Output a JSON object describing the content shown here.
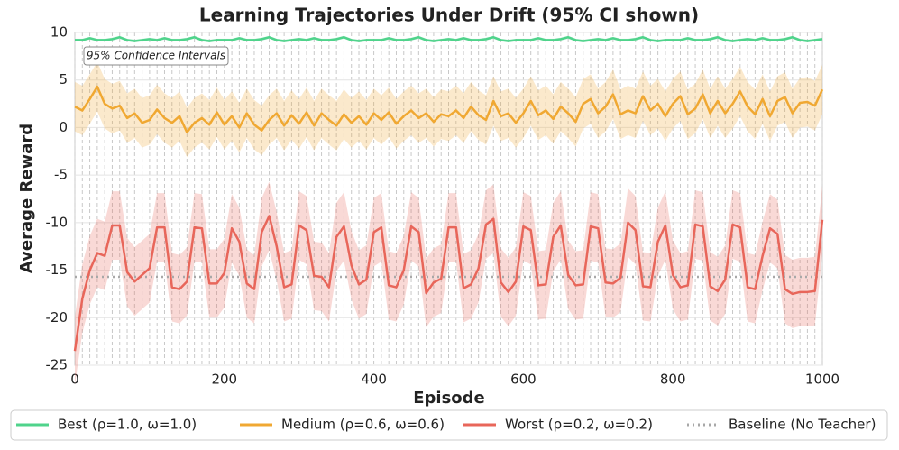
{
  "chart_data": {
    "type": "line",
    "title": "Learning Trajectories Under Drift (95% CI shown)",
    "xlabel": "Episode",
    "ylabel": "Average Reward",
    "annotation": "95% Confidence Intervals",
    "xlim": [
      0,
      1000
    ],
    "ylim": [
      -25,
      10
    ],
    "xticks": [
      0,
      200,
      400,
      600,
      800,
      1000
    ],
    "yticks": [
      10,
      5,
      0,
      -5,
      -10,
      -15,
      -20,
      -25
    ],
    "grid": true,
    "legend": "bottom",
    "x": [
      0,
      10,
      20,
      30,
      40,
      50,
      60,
      70,
      80,
      90,
      100,
      110,
      120,
      130,
      140,
      150,
      160,
      170,
      180,
      190,
      200,
      210,
      220,
      230,
      240,
      250,
      260,
      270,
      280,
      290,
      300,
      310,
      320,
      330,
      340,
      350,
      360,
      370,
      380,
      390,
      400,
      410,
      420,
      430,
      440,
      450,
      460,
      470,
      480,
      490,
      500,
      510,
      520,
      530,
      540,
      550,
      560,
      570,
      580,
      590,
      600,
      610,
      620,
      630,
      640,
      650,
      660,
      670,
      680,
      690,
      700,
      710,
      720,
      730,
      740,
      750,
      760,
      770,
      780,
      790,
      800,
      810,
      820,
      830,
      840,
      850,
      860,
      870,
      880,
      890,
      900,
      910,
      920,
      930,
      940,
      950,
      960,
      970,
      980,
      990,
      1000
    ],
    "series": [
      {
        "name": "Best (ρ=1.0, ω=1.0)",
        "color": "#4fd38b",
        "ci": 0.15,
        "values": [
          9.2,
          9.2,
          9.4,
          9.2,
          9.2,
          9.3,
          9.5,
          9.2,
          9.1,
          9.2,
          9.3,
          9.2,
          9.4,
          9.2,
          9.2,
          9.3,
          9.5,
          9.2,
          9.1,
          9.2,
          9.2,
          9.2,
          9.4,
          9.2,
          9.2,
          9.3,
          9.5,
          9.2,
          9.1,
          9.2,
          9.3,
          9.2,
          9.4,
          9.2,
          9.2,
          9.3,
          9.5,
          9.2,
          9.1,
          9.2,
          9.2,
          9.2,
          9.4,
          9.2,
          9.2,
          9.3,
          9.5,
          9.2,
          9.1,
          9.2,
          9.3,
          9.2,
          9.4,
          9.2,
          9.2,
          9.3,
          9.5,
          9.2,
          9.1,
          9.2,
          9.2,
          9.2,
          9.4,
          9.2,
          9.2,
          9.3,
          9.5,
          9.2,
          9.1,
          9.2,
          9.3,
          9.2,
          9.4,
          9.2,
          9.2,
          9.3,
          9.5,
          9.2,
          9.1,
          9.2,
          9.2,
          9.2,
          9.4,
          9.2,
          9.2,
          9.3,
          9.5,
          9.2,
          9.1,
          9.2,
          9.3,
          9.2,
          9.4,
          9.2,
          9.2,
          9.3,
          9.5,
          9.2,
          9.1,
          9.2,
          9.3
        ]
      },
      {
        "name": "Medium (ρ=0.6, ω=0.6)",
        "color": "#f0a832",
        "ci": 2.6,
        "values": [
          2.2,
          1.8,
          3,
          4.3,
          2.5,
          2,
          2.3,
          1,
          1.5,
          0.5,
          0.8,
          1.9,
          1,
          0.5,
          1.2,
          -0.5,
          0.5,
          1,
          0.3,
          1.6,
          0.3,
          1.2,
          0,
          1.5,
          0.3,
          -0.3,
          0.8,
          1.5,
          0.2,
          1.3,
          0.4,
          1.6,
          0.2,
          1.5,
          0.8,
          0.2,
          1.4,
          0.5,
          1.2,
          0.3,
          1.5,
          0.8,
          1.6,
          0.4,
          1.2,
          1.8,
          1,
          1.5,
          0.6,
          1.4,
          1.2,
          1.8,
          1,
          2.2,
          1.3,
          0.8,
          2.8,
          1.2,
          1.5,
          0.5,
          1.5,
          2.8,
          1.3,
          1.8,
          0.9,
          2.2,
          1.5,
          0.6,
          2.5,
          3,
          1.5,
          2.2,
          3.5,
          1.4,
          1.8,
          1.5,
          3.3,
          1.8,
          2.5,
          1.2,
          2.5,
          3.3,
          1.4,
          2,
          3.5,
          1.5,
          2.8,
          1.5,
          2.5,
          3.8,
          2.2,
          1.4,
          3,
          1.2,
          2.8,
          3.2,
          1.5,
          2.6,
          2.7,
          2.3,
          4
        ]
      },
      {
        "name": "Worst (ρ=0.2, ω=0.2)",
        "color": "#e8665a",
        "ci": 3.6,
        "values": [
          -23.5,
          -18,
          -15,
          -13.2,
          -13.5,
          -10.3,
          -10.3,
          -15.2,
          -16.2,
          -15.5,
          -14.8,
          -10.5,
          -10.5,
          -16.8,
          -17,
          -16.2,
          -10.5,
          -10.6,
          -16.4,
          -16.4,
          -15.3,
          -10.6,
          -12,
          -16.4,
          -17,
          -11,
          -9.3,
          -12.5,
          -16.8,
          -16.5,
          -10.3,
          -10.8,
          -15.6,
          -15.7,
          -16.8,
          -11.5,
          -10.4,
          -14.5,
          -16.5,
          -16,
          -11,
          -10.5,
          -16.6,
          -16.8,
          -15,
          -10.4,
          -11,
          -17.4,
          -16.3,
          -15.9,
          -10.5,
          -10.5,
          -16.9,
          -16.5,
          -14.8,
          -10.2,
          -9.6,
          -16.3,
          -17.3,
          -16.2,
          -10.4,
          -10.8,
          -16.6,
          -16.5,
          -11.5,
          -10.3,
          -15.5,
          -16.6,
          -16.5,
          -10.4,
          -10.6,
          -16.3,
          -16.4,
          -15.8,
          -10,
          -10.8,
          -16.7,
          -16.8,
          -12,
          -10.3,
          -15.5,
          -16.8,
          -16.6,
          -10.2,
          -10.4,
          -16.7,
          -17.2,
          -16,
          -10.2,
          -10.5,
          -16.8,
          -17,
          -13.5,
          -10.6,
          -11.2,
          -17,
          -17.5,
          -17.3,
          -17.3,
          -17.2,
          -9.7
        ]
      }
    ],
    "baseline": {
      "name": "Baseline (No Teacher)",
      "color": "#a8a8a8",
      "value": -15.7
    }
  }
}
